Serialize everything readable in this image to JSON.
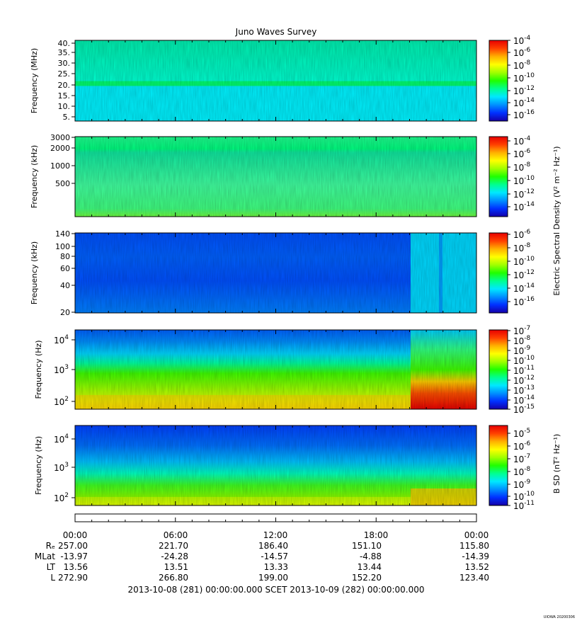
{
  "title": "Juno Waves Survey",
  "footer_stamp": "UIOWA 20200306",
  "colors": {
    "spectrum": [
      "#1400a8",
      "#0030ff",
      "#0090ff",
      "#00e8ff",
      "#00ff90",
      "#20ff00",
      "#a0ff00",
      "#ffff00",
      "#ffb000",
      "#ff4000",
      "#e80000"
    ]
  },
  "chart_data": [
    {
      "type": "heatmap",
      "panel": "high-frequency",
      "ylabel": "Frequency (MHz)",
      "yticks": [
        "40.",
        "35.",
        "30.",
        "25.",
        "20.",
        "15.",
        "10.",
        "5."
      ],
      "cbar_ticks": [
        [
          "10",
          "-4"
        ],
        [
          "10",
          "-6"
        ],
        [
          "10",
          "-8"
        ],
        [
          "10",
          "-10"
        ],
        [
          "10",
          "-12"
        ],
        [
          "10",
          "-14"
        ],
        [
          "10",
          "-16"
        ]
      ],
      "cbar_label": ""
    },
    {
      "type": "heatmap",
      "panel": "mid-frequency",
      "ylabel": "Frequency (kHz)",
      "yticks": [
        "3000",
        "2000",
        "1000",
        "500"
      ],
      "cbar_ticks": [
        [
          "10",
          "-4"
        ],
        [
          "10",
          "-6"
        ],
        [
          "10",
          "-8"
        ],
        [
          "10",
          "-10"
        ],
        [
          "10",
          "-12"
        ],
        [
          "10",
          "-14"
        ]
      ],
      "cbar_label": ""
    },
    {
      "type": "heatmap",
      "panel": "low-frequency",
      "ylabel": "Frequency (kHz)",
      "yticks": [
        "140",
        "100",
        "80",
        "60",
        "40",
        "20"
      ],
      "cbar_ticks": [
        [
          "10",
          "-6"
        ],
        [
          "10",
          "-8"
        ],
        [
          "10",
          "-10"
        ],
        [
          "10",
          "-12"
        ],
        [
          "10",
          "-14"
        ],
        [
          "10",
          "-16"
        ]
      ],
      "cbar_label": ""
    },
    {
      "type": "heatmap",
      "panel": "electric-audio",
      "ylabel": "Frequency (Hz)",
      "yticks": [
        [
          "10",
          "4"
        ],
        [
          "10",
          "3"
        ],
        [
          "10",
          "2"
        ]
      ],
      "cbar_ticks": [
        [
          "10",
          "-7"
        ],
        [
          "10",
          "-8"
        ],
        [
          "10",
          "-9"
        ],
        [
          "10",
          "-10"
        ],
        [
          "10",
          "-11"
        ],
        [
          "10",
          "-12"
        ],
        [
          "10",
          "-13"
        ],
        [
          "10",
          "-14"
        ],
        [
          "10",
          "-15"
        ]
      ],
      "cbar_label": ""
    },
    {
      "type": "heatmap",
      "panel": "magnetic-audio",
      "ylabel": "Frequency (Hz)",
      "yticks": [
        [
          "10",
          "4"
        ],
        [
          "10",
          "3"
        ],
        [
          "10",
          "2"
        ]
      ],
      "cbar_ticks": [
        [
          "10",
          "-5"
        ],
        [
          "10",
          "-6"
        ],
        [
          "10",
          "-7"
        ],
        [
          "10",
          "-8"
        ],
        [
          "10",
          "-9"
        ],
        [
          "10",
          "-10"
        ],
        [
          "10",
          "-11"
        ]
      ],
      "cbar_label": "B SD (nT² Hz⁻¹)"
    }
  ],
  "shared_cbar_label": "Electric Spectral Density (V² m⁻² Hz⁻¹)",
  "time_axis": {
    "times": [
      "00:00",
      "06:00",
      "12:00",
      "18:00",
      "00:00"
    ],
    "rows": [
      {
        "label": "Rₑ",
        "values": [
          "257.00",
          "221.70",
          "186.40",
          "151.10",
          "115.80"
        ]
      },
      {
        "label": "MLat",
        "values": [
          "-13.97",
          "-24.28",
          "-14.57",
          "-4.88",
          "-14.39"
        ]
      },
      {
        "label": "LT",
        "values": [
          "13.56",
          "13.51",
          "13.33",
          "13.44",
          "13.52"
        ]
      },
      {
        "label": "L",
        "values": [
          "272.90",
          "266.80",
          "199.00",
          "152.20",
          "123.40"
        ]
      }
    ],
    "range_text": "2013-10-08 (281) 00:00:00.000     SCET     2013-10-09 (282) 00:00:00.000"
  }
}
